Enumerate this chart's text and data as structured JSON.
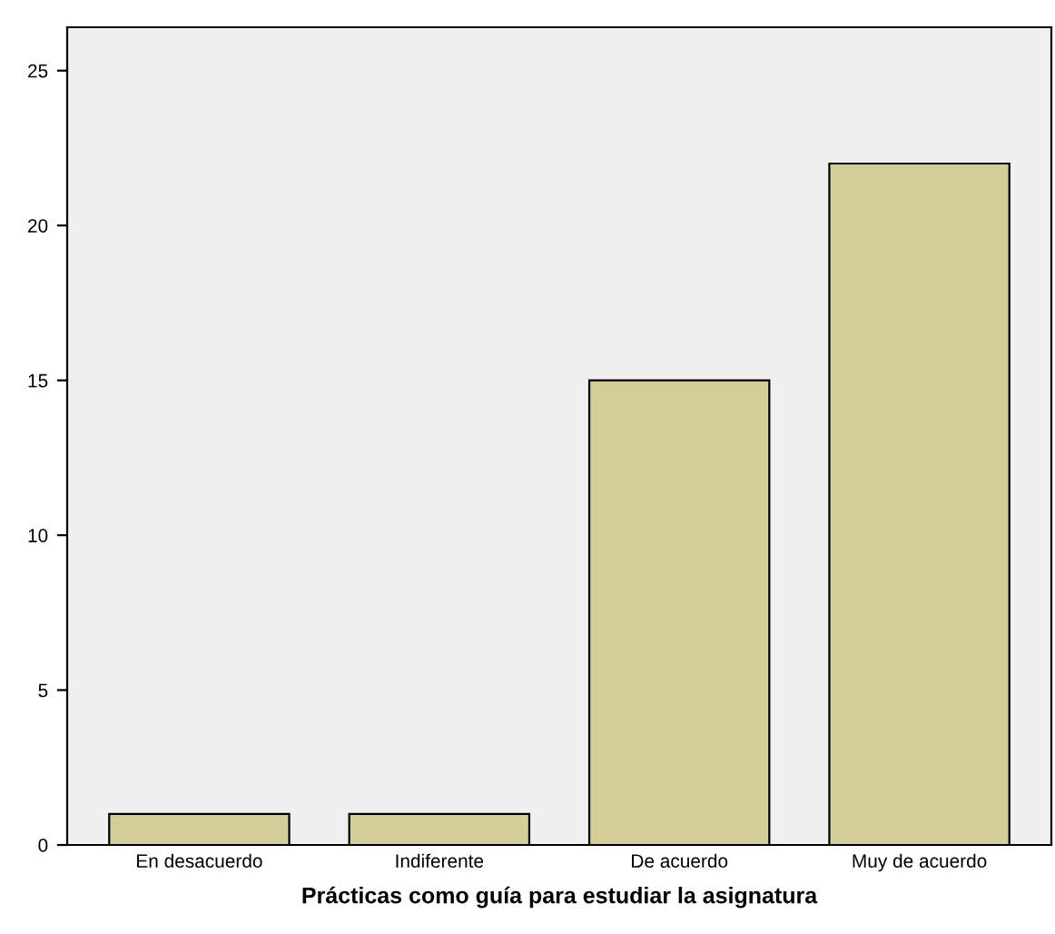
{
  "chart_data": {
    "type": "bar",
    "xlabel": "Prácticas como guía para estudiar la asignatura",
    "categories": [
      "En desacuerdo",
      "Indiferente",
      "De acuerdo",
      "Muy de acuerdo"
    ],
    "values": [
      1,
      1,
      15,
      22
    ],
    "color": "#d3ce97",
    "ylim": [
      0,
      26.4
    ],
    "yticks": [
      0,
      5,
      10,
      15,
      20,
      25
    ],
    "grid": false
  }
}
